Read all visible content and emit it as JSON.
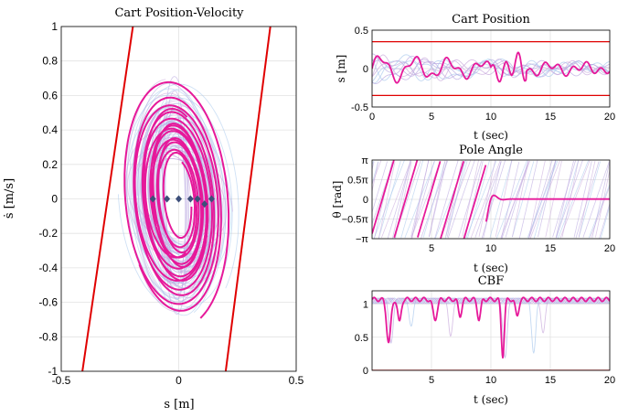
{
  "chart_data": [
    {
      "id": "phase",
      "type": "line",
      "title": "Cart Position-Velocity",
      "xlabel": "s [m]",
      "ylabel": "ṡ [m/s]",
      "xlim": [
        -0.5,
        0.5
      ],
      "ylim": [
        -1,
        1
      ],
      "xticks": [
        "-0.5",
        "0",
        "0.5"
      ],
      "yticks": [
        "-1",
        "-0.8",
        "-0.6",
        "-0.4",
        "-0.2",
        "0",
        "0.2",
        "0.4",
        "0.6",
        "0.8",
        "1"
      ],
      "grid": true,
      "boundaries": [
        {
          "x": [
            -0.195,
            -0.41
          ],
          "y": [
            1,
            -1
          ],
          "color": "#e00000"
        },
        {
          "x": [
            0.39,
            0.2
          ],
          "y": [
            1,
            -1
          ],
          "color": "#e00000"
        }
      ],
      "start_points": {
        "x": [
          -0.11,
          -0.05,
          0.0,
          0.05,
          0.08,
          0.11,
          0.14
        ],
        "y": [
          0,
          0,
          0,
          0,
          0,
          -0.03,
          0
        ],
        "color": "#3d4f7a"
      },
      "series_color": "#e6199a",
      "faded_colors": [
        "#b8a5e0",
        "#a8c8ec",
        "#c8a8dc"
      ]
    },
    {
      "id": "position",
      "type": "line",
      "title": "Cart Position",
      "xlabel": "t (sec)",
      "ylabel": "s [m]",
      "xlim": [
        0,
        20
      ],
      "ylim": [
        -0.5,
        0.5
      ],
      "xticks": [
        "0",
        "5",
        "10",
        "15",
        "20"
      ],
      "yticks": [
        "-0.5",
        "0",
        "0.5"
      ],
      "grid": true,
      "limits": [
        0.35,
        -0.35
      ],
      "limit_color": "#e00000"
    },
    {
      "id": "angle",
      "type": "line",
      "title": "Pole Angle",
      "xlabel": "t (sec)",
      "ylabel": "θ [rad]",
      "ylim": [
        -3.1416,
        3.1416
      ],
      "xlim": [
        0,
        20
      ],
      "xticks": [
        "5",
        "10",
        "15",
        "20"
      ],
      "yticks": [
        "π",
        "0.5π",
        "0",
        "−0.5π",
        "−π"
      ],
      "grid": true
    },
    {
      "id": "cbf",
      "type": "line",
      "title": "CBF",
      "xlabel": "t (sec)",
      "ylabel": "",
      "xlim": [
        0,
        20
      ],
      "ylim": [
        0,
        1.2
      ],
      "xticks": [
        "5",
        "10",
        "15",
        "20"
      ],
      "yticks": [
        "1",
        "0.5",
        "0"
      ],
      "grid": true,
      "zero_line_color": "#e00000"
    }
  ]
}
